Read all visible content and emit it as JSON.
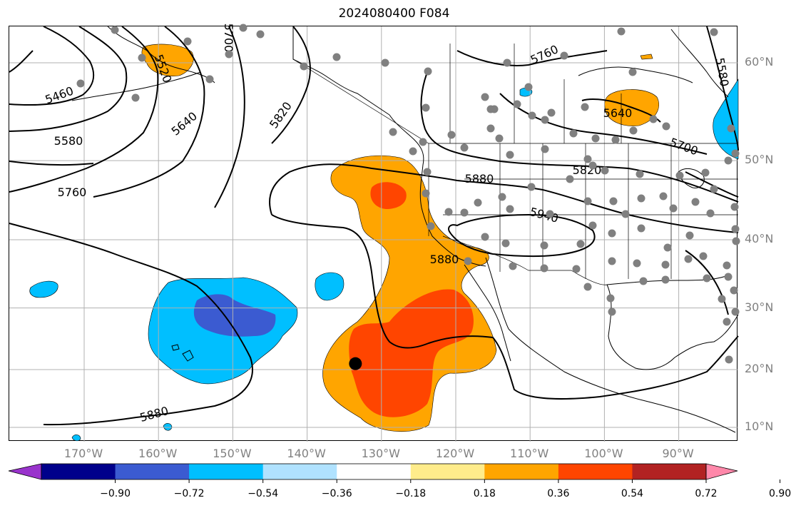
{
  "title": "2024080400 F084",
  "latitude_labels": [
    {
      "text": "60°N",
      "lat": 60
    },
    {
      "text": "50°N",
      "lat": 50
    },
    {
      "text": "40°N",
      "lat": 40
    },
    {
      "text": "30°N",
      "lat": 30
    },
    {
      "text": "20°N",
      "lat": 20
    },
    {
      "text": "10°N",
      "lat": 10
    }
  ],
  "longitude_labels": [
    {
      "text": "170°W",
      "lon": -170
    },
    {
      "text": "160°W",
      "lon": -160
    },
    {
      "text": "150°W",
      "lon": -150
    },
    {
      "text": "140°W",
      "lon": -140
    },
    {
      "text": "130°W",
      "lon": -130
    },
    {
      "text": "120°W",
      "lon": -120
    },
    {
      "text": "110°W",
      "lon": -110
    },
    {
      "text": "100°W",
      "lon": -100
    },
    {
      "text": "90°W",
      "lon": -90
    }
  ],
  "contour_labels": [
    "5460",
    "5580",
    "5760",
    "5640",
    "5520",
    "5820",
    "5880",
    "5760",
    "5640",
    "5700",
    "5820",
    "5880",
    "5940",
    "5880",
    "5580",
    "5700"
  ],
  "colorbar": {
    "colors": [
      "#9933cc",
      "#00008b",
      "#3b5bd1",
      "#00bfff",
      "#b0e2ff",
      "#ffffff",
      "#ffec8b",
      "#ffa500",
      "#ff4500",
      "#b22222",
      "#ff88aa"
    ],
    "tick_labels": [
      "−0.90",
      "−0.72",
      "−0.54",
      "−0.36",
      "−0.18",
      "0.18",
      "0.36",
      "0.54",
      "0.72",
      "0.90"
    ]
  },
  "marker": {
    "lat": 21,
    "lon": -133.5,
    "color": "#000000"
  },
  "station_dots_color": "#808080",
  "shading_colors": {
    "orange": "#ffa500",
    "red": "#ff4500",
    "light_blue": "#00bfff",
    "blue": "#3b5bd1"
  },
  "gridline_color": "#b0b0b0"
}
